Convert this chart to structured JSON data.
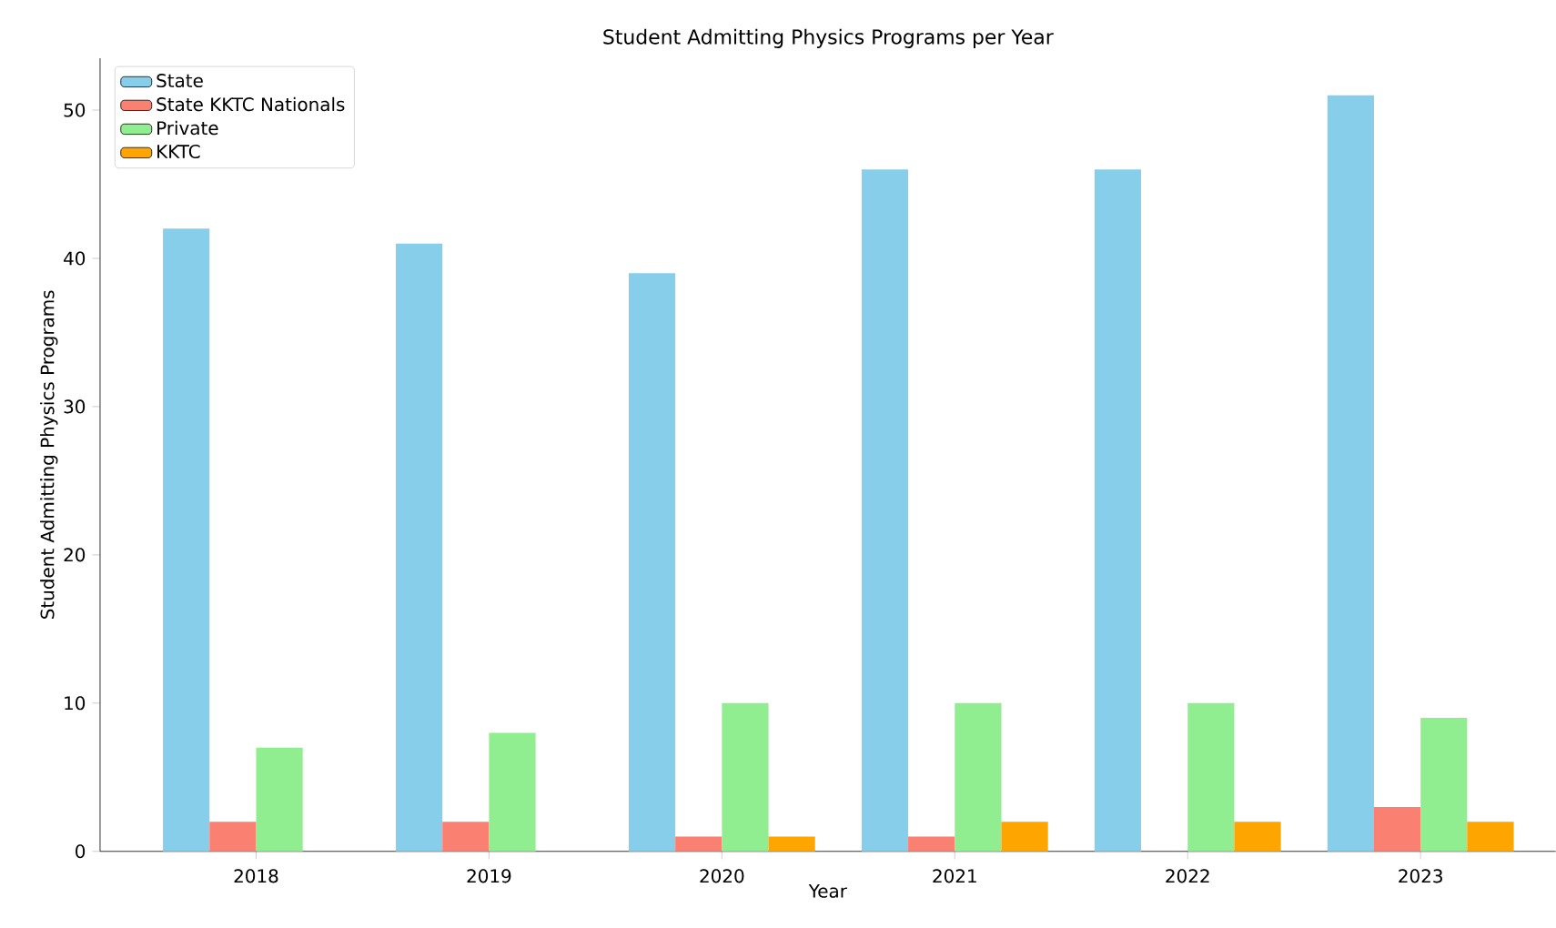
{
  "chart_data": {
    "type": "bar",
    "title": "Student Admitting Physics Programs per Year",
    "xlabel": "Year",
    "ylabel": "Student Admitting Physics Programs",
    "categories": [
      "2018",
      "2019",
      "2020",
      "2021",
      "2022",
      "2023"
    ],
    "series": [
      {
        "name": "State",
        "color": "#87ceeb",
        "values": [
          42,
          41,
          39,
          46,
          46,
          51
        ]
      },
      {
        "name": "State KKTC Nationals",
        "color": "#fa8072",
        "values": [
          2,
          2,
          1,
          1,
          0,
          3
        ]
      },
      {
        "name": "Private",
        "color": "#90ee90",
        "values": [
          7,
          8,
          10,
          10,
          10,
          9
        ]
      },
      {
        "name": "KKTC",
        "color": "#ffa500",
        "values": [
          0,
          0,
          1,
          2,
          2,
          2
        ]
      }
    ],
    "ylim": [
      0,
      53.5
    ],
    "yticks": [
      0,
      10,
      20,
      30,
      40,
      50
    ],
    "grid": false,
    "legend": "top left"
  }
}
